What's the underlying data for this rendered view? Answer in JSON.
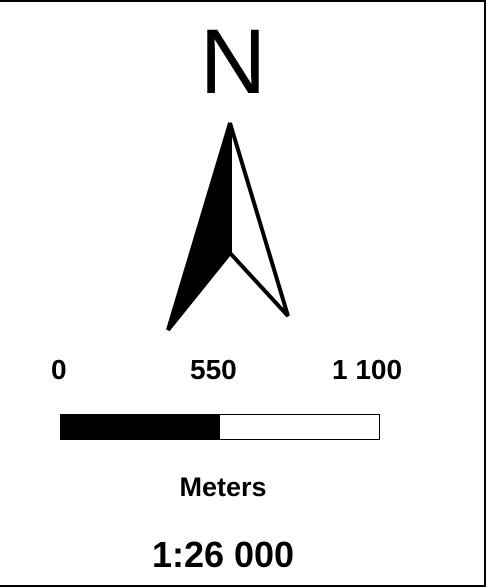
{
  "north_arrow": {
    "letter": "N",
    "icon": "north-arrow-icon"
  },
  "scale_bar": {
    "labels": [
      "0",
      "550",
      "1 100"
    ],
    "units": "Meters",
    "ratio": "1:26 000",
    "fill_color": "#000000",
    "empty_color": "#ffffff"
  }
}
